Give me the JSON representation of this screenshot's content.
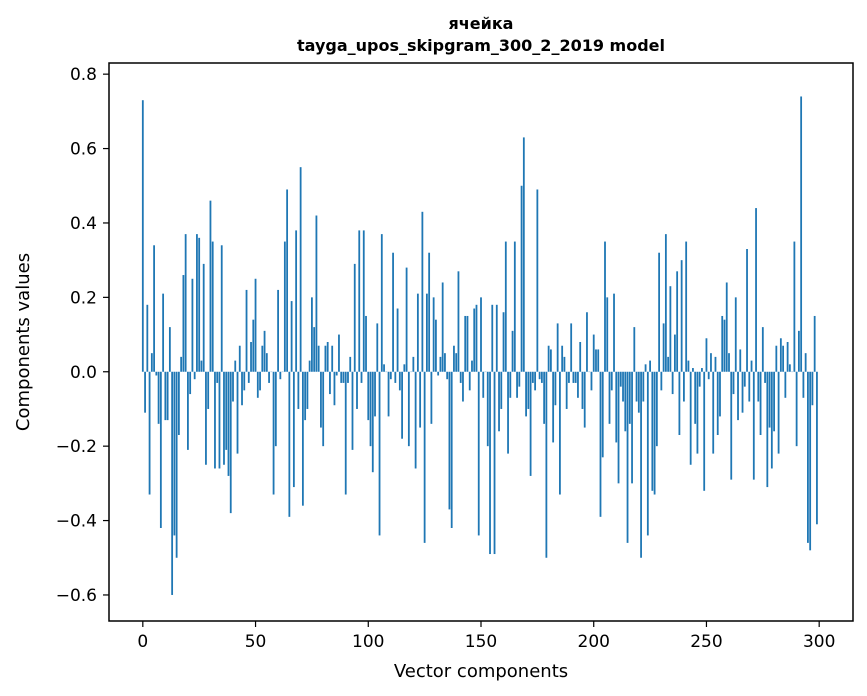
{
  "chart_data": {
    "type": "bar",
    "title": "ячейка",
    "subtitle": "tayga_upos_skipgram_300_2_2019 model",
    "xlabel": "Vector components",
    "ylabel": "Components values",
    "xlim": [
      -15,
      315
    ],
    "ylim": [
      -0.67,
      0.83
    ],
    "xticks": [
      0,
      50,
      100,
      150,
      200,
      250,
      300
    ],
    "xtick_labels": [
      "0",
      "50",
      "100",
      "150",
      "200",
      "250",
      "300"
    ],
    "yticks": [
      -0.6,
      -0.4,
      -0.2,
      0.0,
      0.2,
      0.4,
      0.6,
      0.8
    ],
    "ytick_labels": [
      "−0.6",
      "−0.4",
      "−0.2",
      "0.0",
      "0.2",
      "0.4",
      "0.6",
      "0.8"
    ],
    "grid": false,
    "bar_color": "#1f77b4",
    "x": [
      0,
      1,
      2,
      3,
      4,
      5,
      6,
      7,
      8,
      9,
      10,
      11,
      12,
      13,
      14,
      15,
      16,
      17,
      18,
      19,
      20,
      21,
      22,
      23,
      24,
      25,
      26,
      27,
      28,
      29,
      30,
      31,
      32,
      33,
      34,
      35,
      36,
      37,
      38,
      39,
      40,
      41,
      42,
      43,
      44,
      45,
      46,
      47,
      48,
      49,
      50,
      51,
      52,
      53,
      54,
      55,
      56,
      57,
      58,
      59,
      60,
      61,
      62,
      63,
      64,
      65,
      66,
      67,
      68,
      69,
      70,
      71,
      72,
      73,
      74,
      75,
      76,
      77,
      78,
      79,
      80,
      81,
      82,
      83,
      84,
      85,
      86,
      87,
      88,
      89,
      90,
      91,
      92,
      93,
      94,
      95,
      96,
      97,
      98,
      99,
      100,
      101,
      102,
      103,
      104,
      105,
      106,
      107,
      108,
      109,
      110,
      111,
      112,
      113,
      114,
      115,
      116,
      117,
      118,
      119,
      120,
      121,
      122,
      123,
      124,
      125,
      126,
      127,
      128,
      129,
      130,
      131,
      132,
      133,
      134,
      135,
      136,
      137,
      138,
      139,
      140,
      141,
      142,
      143,
      144,
      145,
      146,
      147,
      148,
      149,
      150,
      151,
      152,
      153,
      154,
      155,
      156,
      157,
      158,
      159,
      160,
      161,
      162,
      163,
      164,
      165,
      166,
      167,
      168,
      169,
      170,
      171,
      172,
      173,
      174,
      175,
      176,
      177,
      178,
      179,
      180,
      181,
      182,
      183,
      184,
      185,
      186,
      187,
      188,
      189,
      190,
      191,
      192,
      193,
      194,
      195,
      196,
      197,
      198,
      199,
      200,
      201,
      202,
      203,
      204,
      205,
      206,
      207,
      208,
      209,
      210,
      211,
      212,
      213,
      214,
      215,
      216,
      217,
      218,
      219,
      220,
      221,
      222,
      223,
      224,
      225,
      226,
      227,
      228,
      229,
      230,
      231,
      232,
      233,
      234,
      235,
      236,
      237,
      238,
      239,
      240,
      241,
      242,
      243,
      244,
      245,
      246,
      247,
      248,
      249,
      250,
      251,
      252,
      253,
      254,
      255,
      256,
      257,
      258,
      259,
      260,
      261,
      262,
      263,
      264,
      265,
      266,
      267,
      268,
      269,
      270,
      271,
      272,
      273,
      274,
      275,
      276,
      277,
      278,
      279,
      280,
      281,
      282,
      283,
      284,
      285,
      286,
      287,
      288,
      289,
      290,
      291,
      292,
      293,
      294,
      295,
      296,
      297,
      298,
      299
    ],
    "values": [
      0.73,
      -0.11,
      0.18,
      -0.33,
      0.05,
      0.34,
      -0.01,
      -0.14,
      -0.42,
      0.21,
      -0.13,
      -0.13,
      0.12,
      -0.6,
      -0.44,
      -0.5,
      -0.17,
      0.04,
      0.26,
      0.37,
      -0.21,
      -0.06,
      0.25,
      -0.02,
      0.37,
      0.36,
      0.03,
      0.29,
      -0.25,
      -0.1,
      0.46,
      0.35,
      -0.26,
      -0.03,
      -0.26,
      0.34,
      -0.25,
      -0.21,
      -0.28,
      -0.38,
      -0.08,
      0.03,
      -0.22,
      0.07,
      -0.09,
      -0.05,
      0.22,
      -0.03,
      0.08,
      0.14,
      0.25,
      -0.07,
      -0.05,
      0.07,
      0.11,
      0.05,
      -0.03,
      0.0,
      -0.33,
      -0.2,
      0.22,
      -0.02,
      0.0,
      0.35,
      0.49,
      -0.39,
      0.19,
      -0.31,
      0.38,
      -0.1,
      0.55,
      -0.36,
      -0.13,
      -0.1,
      0.03,
      0.2,
      0.12,
      0.42,
      0.07,
      -0.15,
      -0.2,
      0.07,
      0.08,
      -0.06,
      0.07,
      -0.09,
      -0.01,
      0.1,
      -0.03,
      -0.03,
      -0.33,
      -0.03,
      0.04,
      -0.21,
      0.29,
      -0.1,
      0.38,
      -0.03,
      0.38,
      0.15,
      -0.13,
      -0.2,
      -0.27,
      -0.12,
      0.13,
      -0.44,
      0.37,
      0.02,
      0.0,
      -0.12,
      -0.02,
      0.32,
      -0.03,
      0.17,
      -0.05,
      -0.18,
      0.02,
      0.28,
      -0.2,
      0.0,
      0.04,
      -0.26,
      0.21,
      -0.15,
      0.43,
      -0.46,
      0.21,
      0.32,
      -0.14,
      0.2,
      0.14,
      -0.01,
      0.04,
      0.24,
      0.05,
      -0.02,
      -0.37,
      -0.42,
      0.07,
      0.05,
      0.27,
      -0.03,
      -0.08,
      0.15,
      0.15,
      -0.05,
      0.03,
      0.17,
      0.18,
      -0.44,
      0.2,
      -0.07,
      0.0,
      -0.2,
      -0.49,
      0.18,
      -0.49,
      0.18,
      -0.16,
      -0.1,
      0.16,
      0.35,
      -0.22,
      -0.07,
      0.11,
      0.35,
      -0.07,
      -0.04,
      0.5,
      0.63,
      -0.12,
      -0.1,
      -0.28,
      -0.03,
      -0.05,
      0.49,
      -0.02,
      -0.03,
      -0.14,
      -0.5,
      0.07,
      0.06,
      -0.19,
      -0.09,
      0.13,
      -0.33,
      0.07,
      0.04,
      -0.1,
      -0.03,
      0.13,
      -0.03,
      -0.03,
      -0.07,
      0.08,
      -0.1,
      -0.15,
      0.16,
      0.0,
      -0.05,
      0.1,
      0.06,
      0.06,
      -0.39,
      -0.23,
      0.35,
      0.2,
      -0.14,
      -0.05,
      0.21,
      -0.19,
      -0.3,
      -0.04,
      -0.08,
      -0.16,
      -0.46,
      -0.14,
      -0.3,
      0.12,
      -0.08,
      -0.11,
      -0.5,
      -0.08,
      0.02,
      -0.44,
      0.03,
      -0.32,
      -0.33,
      -0.2,
      0.32,
      -0.05,
      0.13,
      0.37,
      0.04,
      0.23,
      -0.06,
      0.1,
      0.27,
      -0.17,
      0.3,
      -0.08,
      0.35,
      0.03,
      -0.25,
      0.01,
      -0.14,
      -0.22,
      -0.04,
      0.01,
      -0.32,
      0.09,
      -0.02,
      0.05,
      -0.22,
      0.04,
      -0.17,
      -0.12,
      0.15,
      0.14,
      0.24,
      0.05,
      -0.29,
      -0.06,
      0.2,
      -0.13,
      0.06,
      -0.11,
      -0.04,
      0.33,
      -0.08,
      0.03,
      -0.29,
      0.44,
      -0.08,
      -0.17,
      0.12,
      -0.03,
      -0.31,
      -0.15,
      -0.26,
      -0.16,
      0.07,
      -0.22,
      0.09,
      0.07,
      -0.07,
      0.08,
      0.02,
      0.0,
      0.35,
      -0.2,
      0.11,
      0.74,
      -0.07,
      0.05,
      -0.46,
      -0.48,
      -0.09,
      0.15,
      -0.41
    ]
  }
}
